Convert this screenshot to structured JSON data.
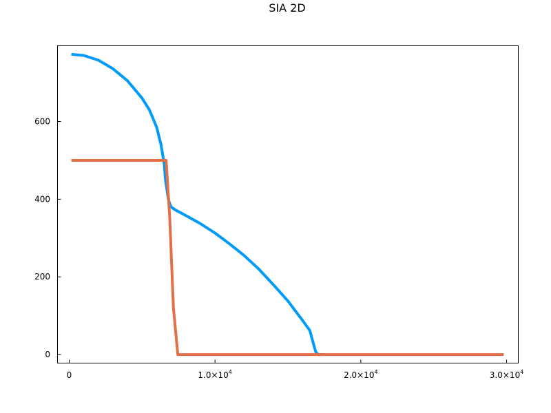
{
  "chart_data": {
    "type": "line",
    "title": "SIA 2D",
    "xlabel": "",
    "ylabel": "",
    "xlim": [
      -800,
      30800
    ],
    "ylim": [
      -22,
      795
    ],
    "grid": false,
    "legend": "none",
    "x_ticks": [
      {
        "value": 0,
        "label": "0"
      },
      {
        "value": 10000,
        "base": "1.0×10",
        "exp": "4"
      },
      {
        "value": 20000,
        "base": "2.0×10",
        "exp": "4"
      },
      {
        "value": 30000,
        "base": "3.0×10",
        "exp": "4"
      }
    ],
    "y_ticks": [
      {
        "value": 0,
        "label": "0"
      },
      {
        "value": 200,
        "label": "200"
      },
      {
        "value": 400,
        "label": "400"
      },
      {
        "value": 600,
        "label": "600"
      }
    ],
    "series": [
      {
        "color": "#009AFA",
        "x": [
          150,
          1000,
          2000,
          3000,
          4000,
          5000,
          5500,
          6000,
          6300,
          6520,
          6600,
          6800,
          6900,
          7000,
          7100,
          7300,
          8000,
          9000,
          10000,
          11000,
          12000,
          13000,
          14000,
          15000,
          16000,
          16500,
          16900,
          17050,
          17300
        ],
        "y": [
          773,
          770,
          758,
          736,
          705,
          660,
          630,
          585,
          540,
          490,
          450,
          400,
          388,
          380,
          377,
          372,
          358,
          337,
          313,
          285,
          255,
          220,
          180,
          138,
          88,
          62,
          8,
          0,
          0
        ]
      },
      {
        "color": "#E26F46",
        "x": [
          150,
          6650,
          6900,
          7150,
          7450,
          29800
        ],
        "y": [
          500,
          500,
          350,
          120,
          0,
          0
        ]
      }
    ]
  }
}
